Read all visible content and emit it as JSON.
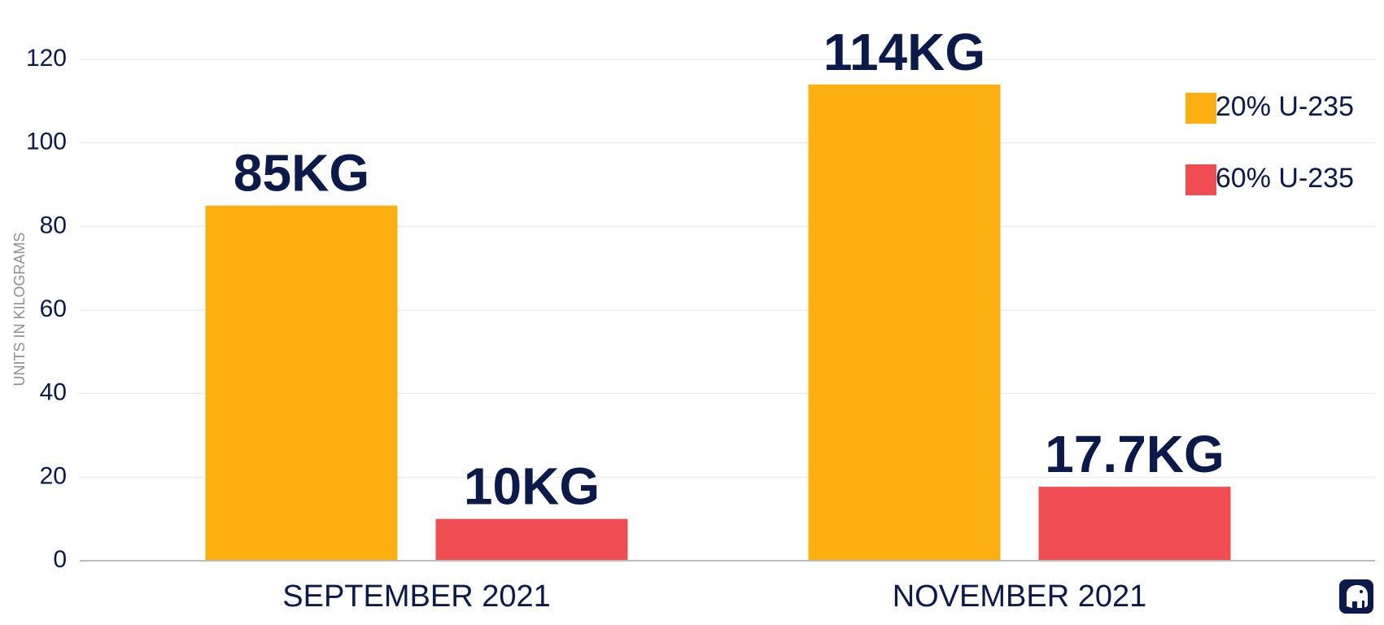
{
  "chart_data": {
    "type": "bar",
    "categories": [
      "SEPTEMBER 2021",
      "NOVEMBER 2021"
    ],
    "series": [
      {
        "name": "20% U-235",
        "values": [
          85,
          114
        ],
        "labels": [
          "85KG",
          "114KG"
        ],
        "color": "#FDAF12"
      },
      {
        "name": "60% U-235",
        "values": [
          10,
          17.7
        ],
        "labels": [
          "10KG",
          "17.7KG"
        ],
        "color": "#EF4C54"
      }
    ],
    "ylabel": "UNITS IN KILOGRAMS",
    "ylim": [
      0,
      120
    ],
    "yticks": [
      "0",
      "20",
      "40",
      "60",
      "80",
      "100",
      "120"
    ],
    "grid": true,
    "legend_position": "top-right"
  },
  "colors": {
    "text": "#0c1a4b",
    "grid": "#e6e6e6",
    "axis": "#bbbbbb"
  },
  "logo": {
    "icon": "elephant-icon"
  }
}
